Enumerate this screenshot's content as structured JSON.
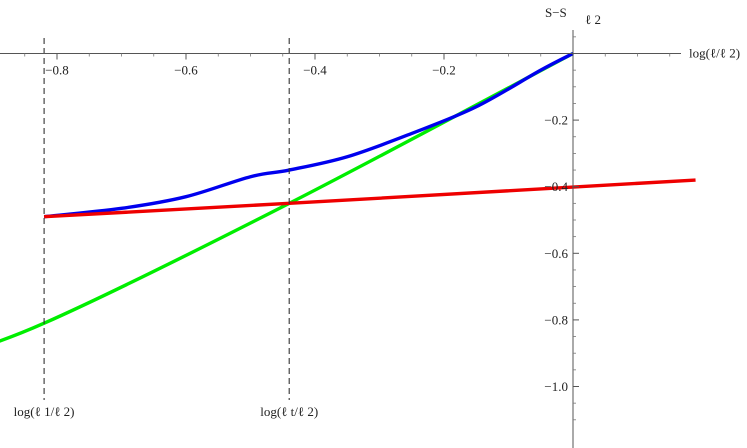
{
  "chart_data": {
    "type": "line",
    "xlabel": "log(ℓ/ℓ 2)",
    "ylabel": "S−S",
    "ylabel_subscript": "ℓ 2",
    "xlim": [
      -1.0,
      0.19
    ],
    "ylim": [
      -1.13,
      0.07
    ],
    "x_ticks": [
      -0.8,
      -0.6,
      -0.4,
      -0.2
    ],
    "x_tick_labels": [
      "−0.8",
      "−0.6",
      "−0.4",
      "−0.2"
    ],
    "y_ticks": [
      -0.2,
      -0.4,
      -0.6,
      -0.8,
      -1.0
    ],
    "y_tick_labels": [
      "−0.2",
      "−0.4",
      "−0.6",
      "−0.8",
      "−1.0"
    ],
    "grid": false,
    "legend": "none",
    "series": [
      {
        "color": "#00ee00",
        "x": [
          -1.0,
          -0.82,
          -0.44,
          0.0
        ],
        "y": [
          -0.93,
          -0.81,
          -0.45,
          0.0
        ]
      },
      {
        "color": "#0000ee",
        "x": [
          -0.82,
          -0.7,
          -0.6,
          -0.5,
          -0.44,
          -0.35,
          -0.25,
          -0.15,
          -0.05,
          0.0
        ],
        "y": [
          -0.49,
          -0.465,
          -0.43,
          -0.37,
          -0.35,
          -0.31,
          -0.24,
          -0.16,
          -0.05,
          0.0
        ]
      },
      {
        "color": "#ee0000",
        "x": [
          -0.82,
          -0.44,
          0.19
        ],
        "y": [
          -0.49,
          -0.45,
          -0.38
        ]
      }
    ],
    "vlines": [
      {
        "x": -0.82,
        "label": "log(ℓ 1/ℓ 2)"
      },
      {
        "x": -0.44,
        "label": "log(ℓ t/ℓ 2)"
      }
    ]
  }
}
